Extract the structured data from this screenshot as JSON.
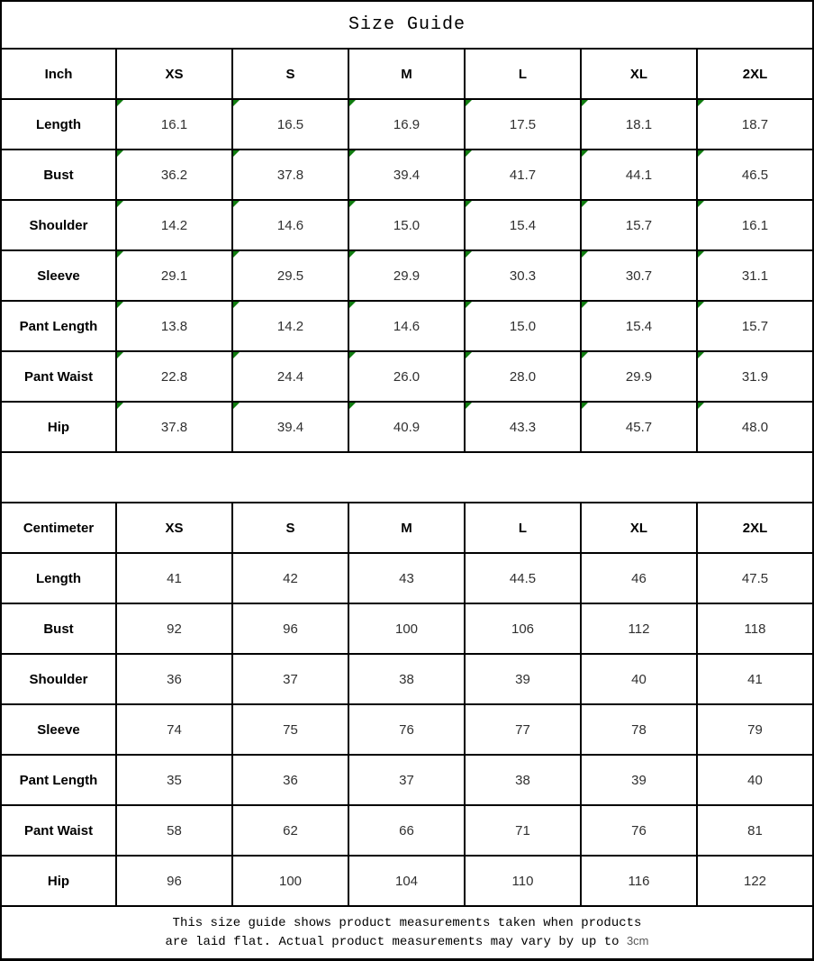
{
  "title": "Size Guide",
  "colors": {
    "grid_line": "#000000",
    "flag_green": "#0f7c0f",
    "value_text": "#303030",
    "footer_suffix_gray": "#595959"
  },
  "tables": [
    {
      "unit_label": "Inch",
      "columns": [
        "XS",
        "S",
        "M",
        "L",
        "XL",
        "2XL"
      ],
      "rows": [
        {
          "label": "Length",
          "values": [
            "16.1",
            "16.5",
            "16.9",
            "17.5",
            "18.1",
            "18.7"
          ]
        },
        {
          "label": "Bust",
          "values": [
            "36.2",
            "37.8",
            "39.4",
            "41.7",
            "44.1",
            "46.5"
          ]
        },
        {
          "label": "Shoulder",
          "values": [
            "14.2",
            "14.6",
            "15.0",
            "15.4",
            "15.7",
            "16.1"
          ]
        },
        {
          "label": "Sleeve",
          "values": [
            "29.1",
            "29.5",
            "29.9",
            "30.3",
            "30.7",
            "31.1"
          ]
        },
        {
          "label": "Pant Length",
          "values": [
            "13.8",
            "14.2",
            "14.6",
            "15.0",
            "15.4",
            "15.7"
          ]
        },
        {
          "label": "Pant Waist",
          "values": [
            "22.8",
            "24.4",
            "26.0",
            "28.0",
            "29.9",
            "31.9"
          ]
        },
        {
          "label": "Hip",
          "values": [
            "37.8",
            "39.4",
            "40.9",
            "43.3",
            "45.7",
            "48.0"
          ]
        }
      ],
      "has_corner_flags": true
    },
    {
      "unit_label": "Centimeter",
      "columns": [
        "XS",
        "S",
        "M",
        "L",
        "XL",
        "2XL"
      ],
      "rows": [
        {
          "label": "Length",
          "values": [
            "41",
            "42",
            "43",
            "44.5",
            "46",
            "47.5"
          ]
        },
        {
          "label": "Bust",
          "values": [
            "92",
            "96",
            "100",
            "106",
            "112",
            "118"
          ]
        },
        {
          "label": "Shoulder",
          "values": [
            "36",
            "37",
            "38",
            "39",
            "40",
            "41"
          ]
        },
        {
          "label": "Sleeve",
          "values": [
            "74",
            "75",
            "76",
            "77",
            "78",
            "79"
          ]
        },
        {
          "label": "Pant Length",
          "values": [
            "35",
            "36",
            "37",
            "38",
            "39",
            "40"
          ]
        },
        {
          "label": "Pant Waist",
          "values": [
            "58",
            "62",
            "66",
            "71",
            "76",
            "81"
          ]
        },
        {
          "label": "Hip",
          "values": [
            "96",
            "100",
            "104",
            "110",
            "116",
            "122"
          ]
        }
      ],
      "has_corner_flags": false
    }
  ],
  "footer": {
    "line1": "This size guide shows product measurements taken when products",
    "line2_prefix": "are laid flat. Actual product measurements may vary by up to ",
    "line2_suffix": "3cm"
  }
}
